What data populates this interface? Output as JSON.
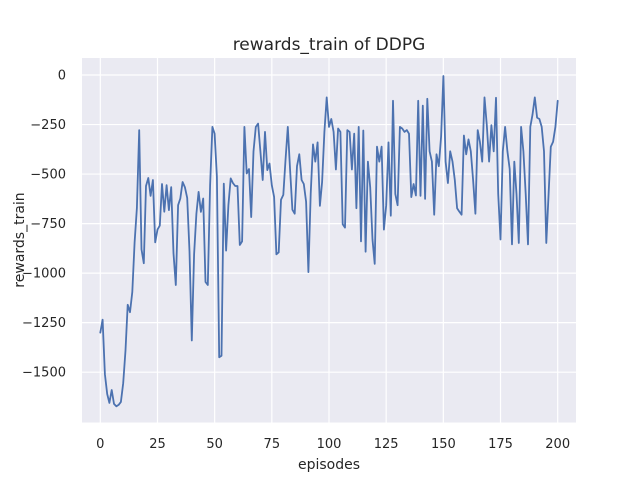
{
  "figure": {
    "background": "#ffffff"
  },
  "chart_data": {
    "type": "line",
    "title": "rewards_train of DDPG",
    "xlabel": "episodes",
    "ylabel": "rewards_train",
    "x_ticks": [
      0,
      25,
      50,
      75,
      100,
      125,
      150,
      175,
      200
    ],
    "x_tick_labels": [
      "0",
      "25",
      "50",
      "75",
      "100",
      "125",
      "150",
      "175",
      "200"
    ],
    "y_ticks": [
      0,
      -250,
      -500,
      -750,
      -1000,
      -1250,
      -1500
    ],
    "y_tick_labels": [
      "0",
      "−250",
      "−500",
      "−750",
      "−1000",
      "−1250",
      "−1500"
    ],
    "xlim": [
      -8,
      208
    ],
    "ylim": [
      -1754,
      86
    ],
    "grid": true,
    "legend_position": "none",
    "style": {
      "axes_background": "#eaeaf2",
      "grid_color": "#ffffff",
      "line_color": "#4c72b0",
      "text_color": "#262626",
      "figure_background": "#ffffff"
    },
    "series": [
      {
        "name": "rewards_train",
        "x_is_episode_index": true,
        "values": [
          -1300,
          -1235,
          -1510,
          -1610,
          -1655,
          -1590,
          -1660,
          -1672,
          -1665,
          -1650,
          -1555,
          -1390,
          -1160,
          -1197,
          -1095,
          -845,
          -670,
          -278,
          -880,
          -950,
          -560,
          -520,
          -610,
          -530,
          -845,
          -780,
          -760,
          -550,
          -690,
          -556,
          -682,
          -566,
          -900,
          -1060,
          -657,
          -623,
          -540,
          -566,
          -620,
          -890,
          -1340,
          -905,
          -700,
          -590,
          -691,
          -623,
          -1045,
          -1060,
          -556,
          -262,
          -296,
          -513,
          -1425,
          -1417,
          -548,
          -886,
          -657,
          -522,
          -545,
          -560,
          -560,
          -858,
          -840,
          -262,
          -497,
          -475,
          -717,
          -385,
          -262,
          -245,
          -385,
          -530,
          -287,
          -480,
          -447,
          -556,
          -615,
          -905,
          -895,
          -630,
          -605,
          -430,
          -262,
          -480,
          -680,
          -700,
          -460,
          -400,
          -530,
          -550,
          -640,
          -995,
          -600,
          -350,
          -437,
          -340,
          -660,
          -540,
          -287,
          -113,
          -262,
          -222,
          -287,
          -477,
          -270,
          -287,
          -753,
          -770,
          -278,
          -287,
          -477,
          -296,
          -672,
          -262,
          -840,
          -280,
          -892,
          -437,
          -566,
          -830,
          -953,
          -362,
          -437,
          -362,
          -780,
          -657,
          -340,
          -710,
          -130,
          -600,
          -657,
          -262,
          -270,
          -287,
          -278,
          -296,
          -616,
          -550,
          -608,
          -130,
          -610,
          -155,
          -625,
          -120,
          -385,
          -437,
          -705,
          -400,
          -460,
          -310,
          -5,
          -437,
          -545,
          -385,
          -437,
          -530,
          -672,
          -690,
          -705,
          -305,
          -400,
          -325,
          -385,
          -530,
          -700,
          -278,
          -337,
          -437,
          -113,
          -253,
          -437,
          -253,
          -385,
          -115,
          -600,
          -830,
          -385,
          -262,
          -385,
          -475,
          -855,
          -437,
          -600,
          -848,
          -262,
          -385,
          -600,
          -855,
          -262,
          -200,
          -113,
          -215,
          -222,
          -262,
          -385,
          -848,
          -600,
          -362,
          -337,
          -262,
          -130
        ]
      }
    ]
  }
}
